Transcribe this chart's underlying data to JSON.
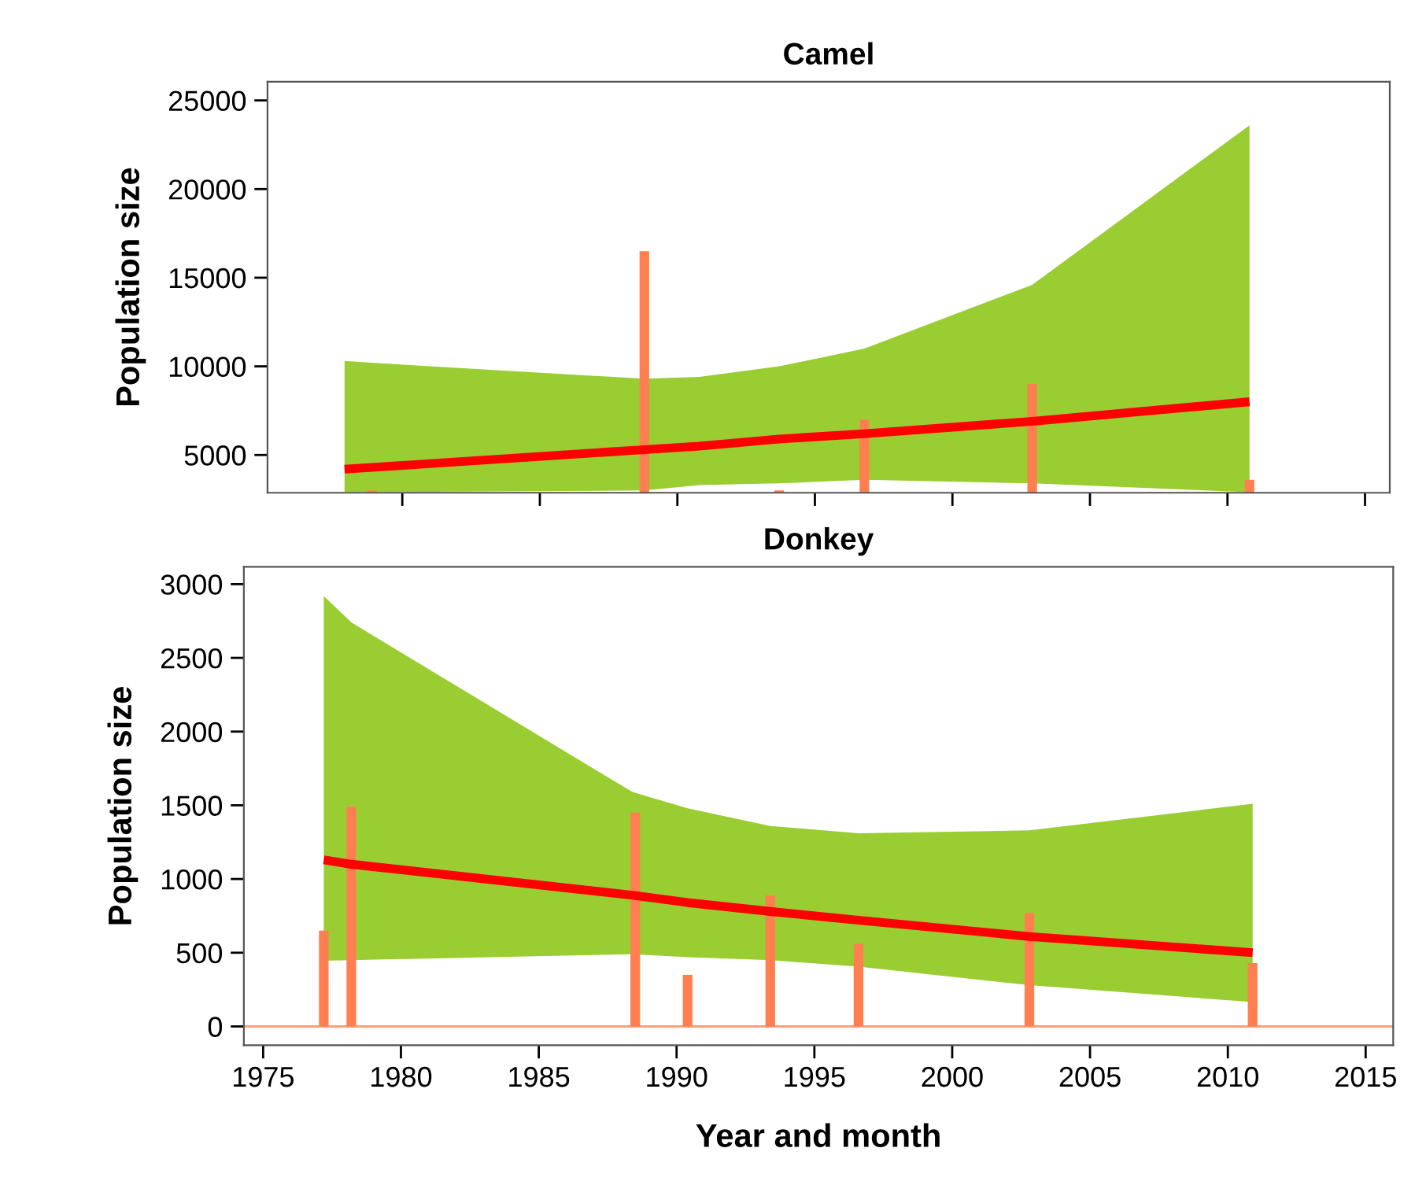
{
  "chart_data": [
    {
      "type": "line",
      "title": "Camel",
      "ylabel": "Population size",
      "xlim": [
        1975.1,
        2015.9
      ],
      "ylim": [
        2870,
        26050
      ],
      "xticks": [
        1980,
        1985,
        1990,
        1995,
        2000,
        2005,
        2010,
        2015
      ],
      "yticks": [
        5000,
        10000,
        15000,
        20000,
        25000
      ],
      "tick_labels": "y",
      "grid": false,
      "legend": false,
      "series": [
        {
          "type": "bar",
          "color": "#ff7f50",
          "x": [
            1978.9,
            1988.8,
            1993.7,
            1996.8,
            2002.9,
            2010.8
          ],
          "values": [
            3000,
            16500,
            3000,
            7000,
            9000,
            3600
          ]
        },
        {
          "color": "#ff0000",
          "x": [
            1977.9,
            1978.9,
            1988.8,
            1990.8,
            1993.7,
            1996.8,
            2002.9,
            2010.8
          ],
          "values": [
            4200,
            4300,
            5300,
            5500,
            5900,
            6200,
            6900,
            8000
          ],
          "lower": [
            2900,
            2900,
            3000,
            3300,
            3400,
            3600,
            3400,
            2900
          ],
          "upper": [
            10300,
            10200,
            9300,
            9400,
            10000,
            11000,
            14600,
            23600
          ]
        }
      ]
    },
    {
      "type": "line",
      "title": "Donkey",
      "xlabel": "Year and month",
      "ylabel": "Population size",
      "xlim": [
        1974.3,
        2016
      ],
      "ylim": [
        -128,
        3117
      ],
      "xticks": [
        1975,
        1980,
        1985,
        1990,
        1995,
        2000,
        2005,
        2010,
        2015
      ],
      "yticks": [
        0,
        500,
        1000,
        1500,
        2000,
        2500,
        3000
      ],
      "grid": false,
      "legend": false,
      "ref_lines": [
        {
          "axis": "y",
          "value": 0,
          "color": "#ffa07a"
        }
      ],
      "series": [
        {
          "type": "bar",
          "color": "#ff7f50",
          "x": [
            1977.2,
            1978.2,
            1988.5,
            1990.4,
            1993.4,
            1996.6,
            2002.8,
            2010.9
          ],
          "values": [
            650,
            1490,
            1450,
            350,
            890,
            560,
            770,
            430
          ]
        },
        {
          "color": "#ff0000",
          "x": [
            1977.2,
            1978.2,
            1988.4,
            1990.4,
            1993.4,
            1996.6,
            2002.8,
            2010.9
          ],
          "values": [
            1130,
            1100,
            890,
            840,
            780,
            720,
            610,
            500
          ],
          "lower": [
            445,
            450,
            490,
            470,
            450,
            405,
            280,
            165
          ],
          "upper": [
            2920,
            2740,
            1590,
            1480,
            1360,
            1310,
            1330,
            1510
          ]
        }
      ]
    }
  ]
}
